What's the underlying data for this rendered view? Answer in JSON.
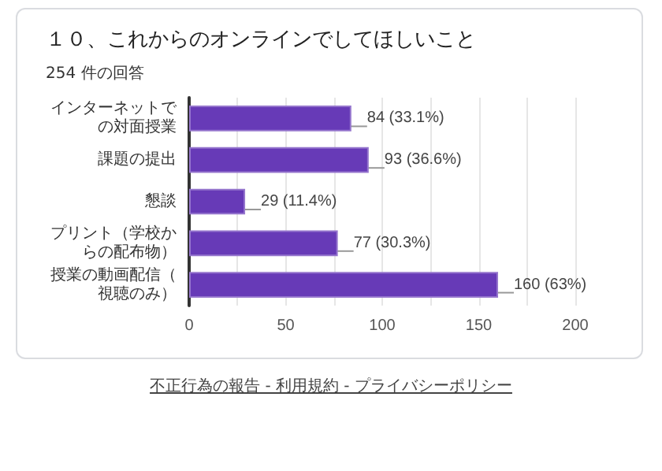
{
  "chart_data": {
    "type": "bar",
    "orientation": "horizontal",
    "title": "１０、これからのオンラインでしてほしいこと",
    "subtitle": "254 件の回答",
    "categories": [
      "インターネットでの対面授業",
      "課題の提出",
      "懇談",
      "プリント（学校からの配布物）",
      "授業の動画配信（視聴のみ）"
    ],
    "values": [
      84,
      93,
      29,
      77,
      160
    ],
    "color": "#673ab7",
    "value_labels": [
      "84 (33.1%)",
      "93 (36.6%)",
      "29 (11.4%)",
      "77 (30.3%)",
      "160 (63%)"
    ],
    "xlim": [
      0,
      200
    ],
    "xticks": [
      0,
      {
        "value": 25,
        "label": null
      },
      50,
      {
        "value": 75,
        "label": null
      },
      100,
      {
        "value": 125,
        "label": null
      },
      150,
      {
        "value": 175,
        "label": null
      },
      200
    ],
    "grid": "x",
    "annotations": [
      "不正行為の報告 - 利用規約 - プライバシーポリシー"
    ]
  }
}
